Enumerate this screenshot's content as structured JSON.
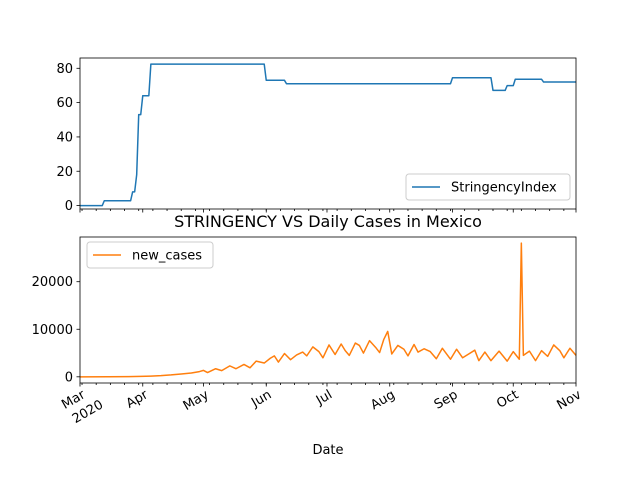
{
  "figure": {
    "title": "STRINGENCY VS Daily Cases in Mexico",
    "xlabel": "Date"
  },
  "chart_data": [
    {
      "type": "line",
      "x_type": "date",
      "xlim": [
        "2020-03-01",
        "2020-11-01"
      ],
      "ylim": [
        -2,
        86
      ],
      "yticks": [
        0,
        20,
        40,
        60,
        80
      ],
      "legend_position": "lower-right",
      "series": [
        {
          "name": "StringencyIndex",
          "color": "#1f77b4",
          "points": [
            [
              "2020-03-01",
              0
            ],
            [
              "2020-03-12",
              0
            ],
            [
              "2020-03-13",
              2.8
            ],
            [
              "2020-03-26",
              2.8
            ],
            [
              "2020-03-27",
              8
            ],
            [
              "2020-03-28",
              8
            ],
            [
              "2020-03-29",
              18
            ],
            [
              "2020-03-30",
              53
            ],
            [
              "2020-03-31",
              53
            ],
            [
              "2020-04-01",
              64
            ],
            [
              "2020-04-04",
              64
            ],
            [
              "2020-04-05",
              82.4
            ],
            [
              "2020-05-31",
              82.4
            ],
            [
              "2020-06-01",
              73
            ],
            [
              "2020-06-10",
              73
            ],
            [
              "2020-06-11",
              71
            ],
            [
              "2020-08-31",
              71
            ],
            [
              "2020-09-01",
              74.5
            ],
            [
              "2020-09-20",
              74.5
            ],
            [
              "2020-09-21",
              67.1
            ],
            [
              "2020-09-27",
              67.1
            ],
            [
              "2020-09-28",
              69.9
            ],
            [
              "2020-10-01",
              69.9
            ],
            [
              "2020-10-02",
              73.6
            ],
            [
              "2020-10-15",
              73.6
            ],
            [
              "2020-10-16",
              72
            ],
            [
              "2020-11-01",
              72
            ]
          ]
        }
      ]
    },
    {
      "type": "line",
      "x_type": "date",
      "xlim": [
        "2020-03-01",
        "2020-11-01"
      ],
      "ylim": [
        -1300,
        29400
      ],
      "yticks": [
        0,
        10000,
        20000
      ],
      "xticks": [
        {
          "date": "2020-03-01",
          "label": "Mar",
          "sublabel": "2020"
        },
        {
          "date": "2020-04-01",
          "label": "Apr",
          "sublabel": ""
        },
        {
          "date": "2020-05-01",
          "label": "May",
          "sublabel": ""
        },
        {
          "date": "2020-06-01",
          "label": "Jun",
          "sublabel": ""
        },
        {
          "date": "2020-07-01",
          "label": "Jul",
          "sublabel": ""
        },
        {
          "date": "2020-08-01",
          "label": "Aug",
          "sublabel": ""
        },
        {
          "date": "2020-09-01",
          "label": "Sep",
          "sublabel": ""
        },
        {
          "date": "2020-10-01",
          "label": "Oct",
          "sublabel": ""
        },
        {
          "date": "2020-11-01",
          "label": "Nov",
          "sublabel": ""
        }
      ],
      "legend_position": "upper-left",
      "series": [
        {
          "name": "new_cases",
          "color": "#ff7f0e",
          "points": [
            [
              "2020-03-01",
              0
            ],
            [
              "2020-03-15",
              10
            ],
            [
              "2020-03-25",
              50
            ],
            [
              "2020-03-31",
              90
            ],
            [
              "2020-04-05",
              150
            ],
            [
              "2020-04-10",
              250
            ],
            [
              "2020-04-15",
              400
            ],
            [
              "2020-04-20",
              600
            ],
            [
              "2020-04-25",
              800
            ],
            [
              "2020-04-29",
              1100
            ],
            [
              "2020-05-01",
              1350
            ],
            [
              "2020-05-03",
              900
            ],
            [
              "2020-05-07",
              1700
            ],
            [
              "2020-05-10",
              1300
            ],
            [
              "2020-05-14",
              2300
            ],
            [
              "2020-05-17",
              1700
            ],
            [
              "2020-05-21",
              2600
            ],
            [
              "2020-05-24",
              1900
            ],
            [
              "2020-05-27",
              3300
            ],
            [
              "2020-05-31",
              2900
            ],
            [
              "2020-06-03",
              3900
            ],
            [
              "2020-06-05",
              4400
            ],
            [
              "2020-06-07",
              3100
            ],
            [
              "2020-06-10",
              4900
            ],
            [
              "2020-06-13",
              3600
            ],
            [
              "2020-06-16",
              4600
            ],
            [
              "2020-06-19",
              5200
            ],
            [
              "2020-06-21",
              4400
            ],
            [
              "2020-06-24",
              6300
            ],
            [
              "2020-06-27",
              5300
            ],
            [
              "2020-06-29",
              4000
            ],
            [
              "2020-07-02",
              6700
            ],
            [
              "2020-07-05",
              4700
            ],
            [
              "2020-07-08",
              6900
            ],
            [
              "2020-07-10",
              5500
            ],
            [
              "2020-07-12",
              4500
            ],
            [
              "2020-07-15",
              7100
            ],
            [
              "2020-07-17",
              6600
            ],
            [
              "2020-07-19",
              5000
            ],
            [
              "2020-07-22",
              7600
            ],
            [
              "2020-07-25",
              6200
            ],
            [
              "2020-07-27",
              5100
            ],
            [
              "2020-07-29",
              7800
            ],
            [
              "2020-07-31",
              9556
            ],
            [
              "2020-08-02",
              4800
            ],
            [
              "2020-08-05",
              6600
            ],
            [
              "2020-08-08",
              5800
            ],
            [
              "2020-08-10",
              4400
            ],
            [
              "2020-08-13",
              6800
            ],
            [
              "2020-08-15",
              5200
            ],
            [
              "2020-08-18",
              5900
            ],
            [
              "2020-08-21",
              5300
            ],
            [
              "2020-08-24",
              3800
            ],
            [
              "2020-08-27",
              6000
            ],
            [
              "2020-08-31",
              3700
            ],
            [
              "2020-09-03",
              5800
            ],
            [
              "2020-09-06",
              4000
            ],
            [
              "2020-09-09",
              4800
            ],
            [
              "2020-09-12",
              5600
            ],
            [
              "2020-09-14",
              3400
            ],
            [
              "2020-09-17",
              5200
            ],
            [
              "2020-09-20",
              3400
            ],
            [
              "2020-09-24",
              5400
            ],
            [
              "2020-09-28",
              3300
            ],
            [
              "2020-10-01",
              5300
            ],
            [
              "2020-10-04",
              3700
            ],
            [
              "2020-10-05",
              28115
            ],
            [
              "2020-10-06",
              4500
            ],
            [
              "2020-10-09",
              5400
            ],
            [
              "2020-10-12",
              3400
            ],
            [
              "2020-10-15",
              5500
            ],
            [
              "2020-10-18",
              4300
            ],
            [
              "2020-10-21",
              6700
            ],
            [
              "2020-10-24",
              5500
            ],
            [
              "2020-10-26",
              4000
            ],
            [
              "2020-10-29",
              6000
            ],
            [
              "2020-11-01",
              4500
            ]
          ]
        }
      ]
    }
  ]
}
